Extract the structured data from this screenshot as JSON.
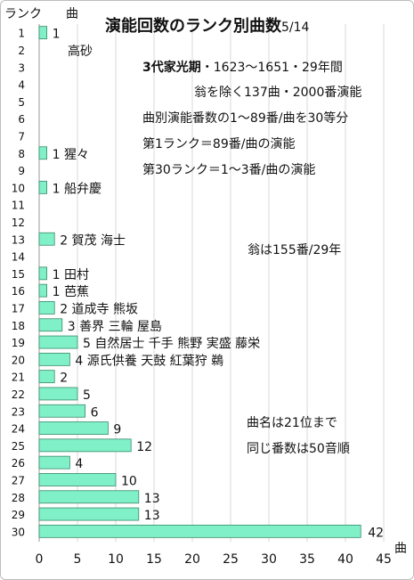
{
  "chart_data": {
    "type": "bar",
    "orientation": "horizontal",
    "title": "演能回数のランク別曲数",
    "title_date": "5/14",
    "ylabel": "ランク",
    "xlabel": "曲",
    "xlabel_bottom": "曲",
    "xlim": [
      0,
      45
    ],
    "xticks": [
      0,
      5,
      10,
      15,
      20,
      25,
      30,
      35,
      40,
      45
    ],
    "grid": "vertical",
    "bar_color": "#7ff0c8",
    "bar_stroke": "#3a8a6a",
    "categories": [
      "1",
      "2",
      "3",
      "4",
      "5",
      "6",
      "7",
      "8",
      "9",
      "10",
      "11",
      "12",
      "13",
      "14",
      "15",
      "16",
      "17",
      "18",
      "19",
      "20",
      "21",
      "22",
      "23",
      "24",
      "25",
      "26",
      "27",
      "28",
      "29",
      "30"
    ],
    "values": [
      1,
      0,
      0,
      0,
      0,
      0,
      0,
      1,
      0,
      1,
      0,
      0,
      2,
      0,
      1,
      1,
      2,
      3,
      5,
      4,
      2,
      5,
      6,
      9,
      12,
      4,
      10,
      13,
      13,
      42
    ],
    "bar_labels": [
      {
        "rank": 1,
        "text": "1"
      },
      {
        "rank": 2,
        "text": "高砂"
      },
      {
        "rank": 8,
        "text": "1  猩々"
      },
      {
        "rank": 10,
        "text": "1  船弁慶"
      },
      {
        "rank": 13,
        "text": "2 賀茂 海士"
      },
      {
        "rank": 15,
        "text": "1 田村"
      },
      {
        "rank": 16,
        "text": "1  芭蕉"
      },
      {
        "rank": 17,
        "text": "2  道成寺 熊坂"
      },
      {
        "rank": 18,
        "text": "3 善界 三輪 屋島"
      },
      {
        "rank": 19,
        "text": "5 自然居士 千手 熊野 実盛 藤栄"
      },
      {
        "rank": 20,
        "text": "4  源氏供養 天鼓 紅葉狩 鵜"
      },
      {
        "rank": 21,
        "text": "2"
      },
      {
        "rank": 22,
        "text": "5"
      },
      {
        "rank": 23,
        "text": "6"
      },
      {
        "rank": 24,
        "text": "9"
      },
      {
        "rank": 25,
        "text": "12"
      },
      {
        "rank": 26,
        "text": "4"
      },
      {
        "rank": 27,
        "text": "10"
      },
      {
        "rank": 28,
        "text": "13"
      },
      {
        "rank": 29,
        "text": "13"
      },
      {
        "rank": 30,
        "text": "42"
      }
    ],
    "annotations": {
      "period_label": "3代家光期",
      "period_rest": "・1623～1651・29年間",
      "line2": "翁を除く137曲・2000番演能",
      "line3": "曲別演能番数の1～89番/曲を30等分",
      "line4": "第1ランク＝89番/曲の演能",
      "line5": "第30ランク＝1～3番/曲の演能",
      "okina": "翁は155番/29年",
      "note1": "曲名は21位まで",
      "note2": "同じ番数は50音順"
    }
  }
}
